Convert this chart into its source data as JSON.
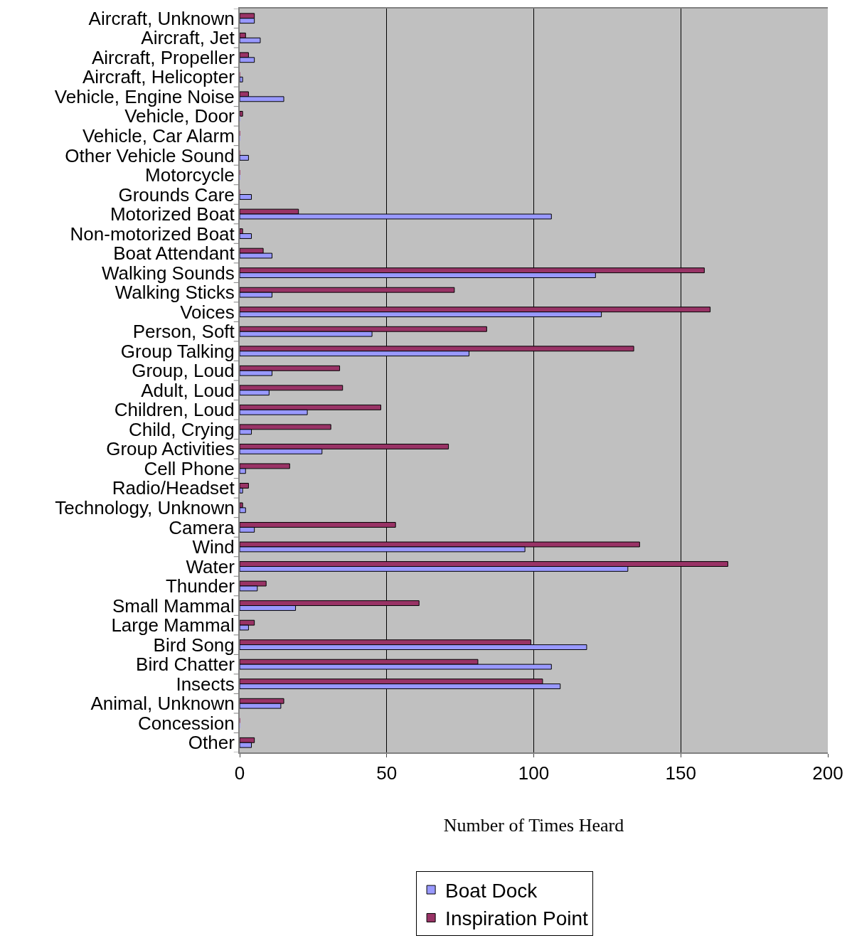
{
  "chart_data": {
    "type": "bar",
    "orientation": "horizontal",
    "xlabel": "Number of Times Heard",
    "categories": [
      "Aircraft, Unknown",
      "Aircraft, Jet",
      "Aircraft, Propeller",
      "Aircraft, Helicopter",
      "Vehicle, Engine Noise",
      "Vehicle, Door",
      "Vehicle, Car Alarm",
      "Other Vehicle Sound",
      "Motorcycle",
      "Grounds Care",
      "Motorized Boat",
      "Non-motorized Boat",
      "Boat Attendant",
      "Walking Sounds",
      "Walking Sticks",
      "Voices",
      "Person, Soft",
      "Group Talking",
      "Group, Loud",
      "Adult, Loud",
      "Children, Loud",
      "Child, Crying",
      "Group Activities",
      "Cell Phone",
      "Radio/Headset",
      "Technology, Unknown",
      "Camera",
      "Wind",
      "Water",
      "Thunder",
      "Small Mammal",
      "Large Mammal",
      "Bird Song",
      "Bird Chatter",
      "Insects",
      "Animal, Unknown",
      "Concession",
      "Other"
    ],
    "series": [
      {
        "name": "Inspiration Point",
        "color": "#993366",
        "values": [
          5,
          2,
          3,
          0,
          3,
          1,
          0,
          0,
          0,
          0,
          20,
          1,
          8,
          158,
          73,
          160,
          84,
          134,
          34,
          35,
          48,
          31,
          71,
          17,
          3,
          1,
          53,
          136,
          166,
          9,
          61,
          5,
          99,
          81,
          103,
          15,
          0,
          5
        ]
      },
      {
        "name": "Boat Dock",
        "color": "#9999ff",
        "values": [
          5,
          7,
          5,
          1,
          15,
          0,
          0,
          3,
          0,
          4,
          106,
          4,
          11,
          121,
          11,
          123,
          45,
          78,
          11,
          10,
          23,
          4,
          28,
          2,
          1,
          2,
          5,
          97,
          132,
          6,
          19,
          3,
          118,
          106,
          109,
          14,
          0,
          4
        ]
      }
    ],
    "xlim": [
      0,
      200
    ],
    "xticks": [
      0,
      50,
      100,
      150,
      200
    ],
    "grid": "x",
    "legend": "bottom right"
  }
}
